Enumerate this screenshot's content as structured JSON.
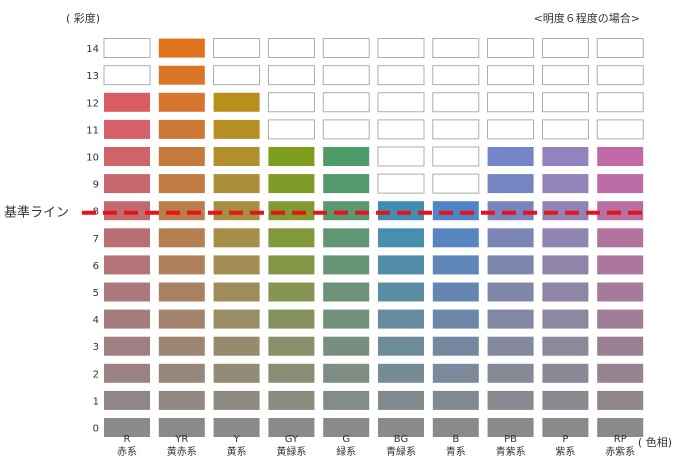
{
  "header": {
    "y_axis_title": "( 彩度)",
    "condition_note": "<明度６程度の場合>"
  },
  "x_axis_title": "( 色相)",
  "baseline": {
    "label": "基準ライン",
    "chroma": 8,
    "color": "#e8121a"
  },
  "chroma_levels": [
    "0",
    "1",
    "2",
    "3",
    "4",
    "5",
    "6",
    "7",
    "8",
    "9",
    "10",
    "11",
    "12",
    "13",
    "14"
  ],
  "hues": [
    {
      "code": "R",
      "name": "赤系",
      "max_chroma": 12
    },
    {
      "code": "YR",
      "name": "黄赤系",
      "max_chroma": 14
    },
    {
      "code": "Y",
      "name": "黄系",
      "max_chroma": 12
    },
    {
      "code": "GY",
      "name": "黄緑系",
      "max_chroma": 10
    },
    {
      "code": "G",
      "name": "緑系",
      "max_chroma": 10
    },
    {
      "code": "BG",
      "name": "青緑系",
      "max_chroma": 8
    },
    {
      "code": "B",
      "name": "青系",
      "max_chroma": 8
    },
    {
      "code": "PB",
      "name": "青紫系",
      "max_chroma": 10
    },
    {
      "code": "P",
      "name": "紫系",
      "max_chroma": 10
    },
    {
      "code": "RP",
      "name": "赤紫系",
      "max_chroma": 10
    }
  ],
  "colors": {
    "neutral": "#8a8a8a",
    "empty_cell_fill": "#ffffff",
    "empty_cell_stroke": "#999999",
    "hue_max": [
      "#dc5c64",
      "#e0731e",
      "#b98f1c",
      "#7f9e1c",
      "#4e9b6a",
      "#3f8eb2",
      "#4f84c8",
      "#7484c8",
      "#9382c0",
      "#c26aa8"
    ]
  }
}
